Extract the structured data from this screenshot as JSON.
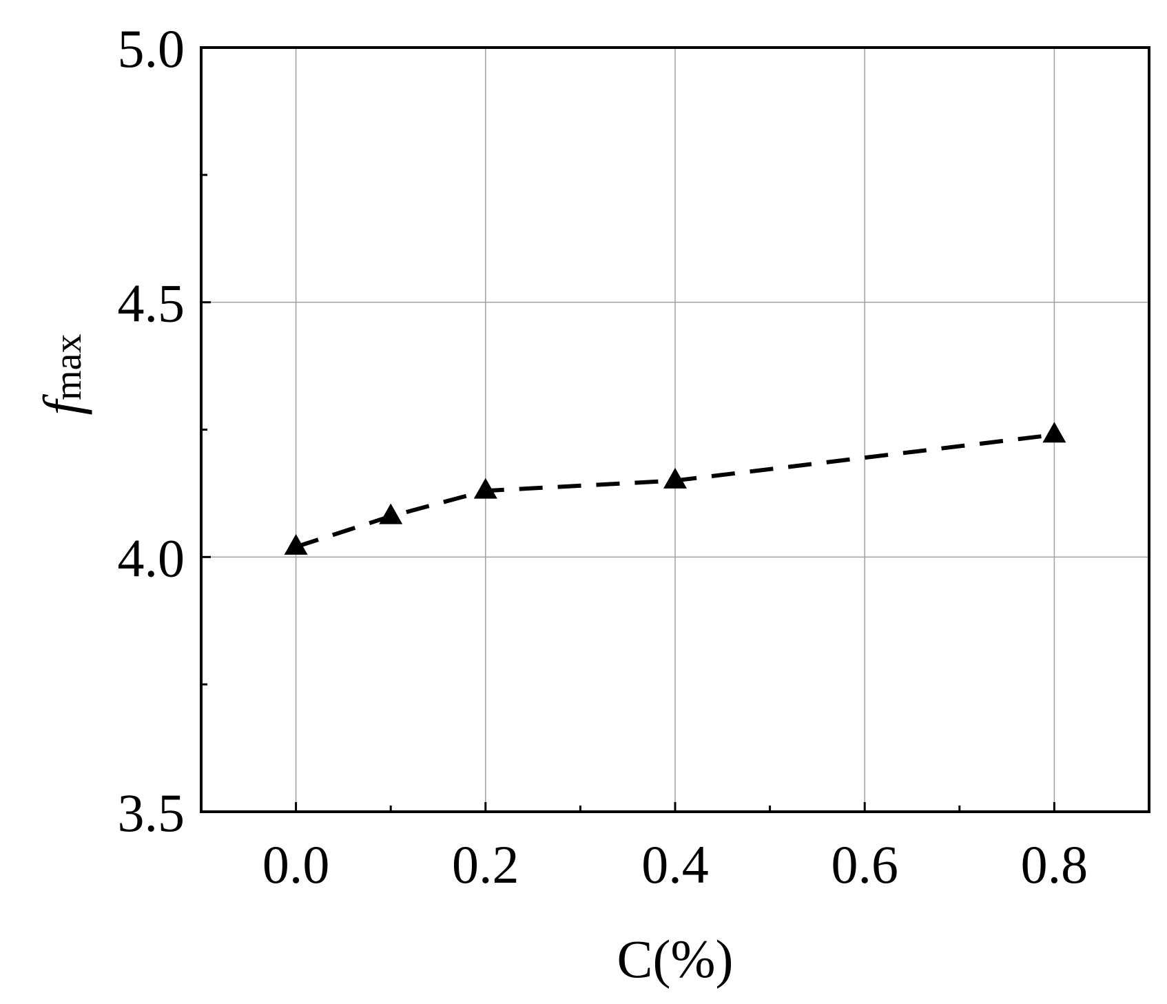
{
  "chart_data": {
    "type": "line",
    "title": "",
    "xlabel": "C(%)",
    "ylabel": {
      "main": "f",
      "subscript": "max"
    },
    "xlim": [
      -0.1,
      0.9
    ],
    "ylim": [
      3.5,
      5.0
    ],
    "x_ticks": [
      0.0,
      0.2,
      0.4,
      0.6,
      0.8
    ],
    "x_tick_labels": [
      "0.0",
      "0.2",
      "0.4",
      "0.6",
      "0.8"
    ],
    "x_minor_ticks": [
      0.1,
      0.3,
      0.5,
      0.7
    ],
    "y_ticks": [
      3.5,
      4.0,
      4.5,
      5.0
    ],
    "y_tick_labels": [
      "3.5",
      "4.0",
      "4.5",
      "5.0"
    ],
    "y_minor_ticks": [
      3.75,
      4.25,
      4.75
    ],
    "grid": true,
    "legend": "none",
    "series": [
      {
        "marker": "triangle",
        "line_style": "dashed",
        "color": "#000000",
        "x": [
          0.0,
          0.1,
          0.2,
          0.4,
          0.8
        ],
        "y": [
          4.02,
          4.08,
          4.13,
          4.15,
          4.24
        ]
      }
    ]
  }
}
